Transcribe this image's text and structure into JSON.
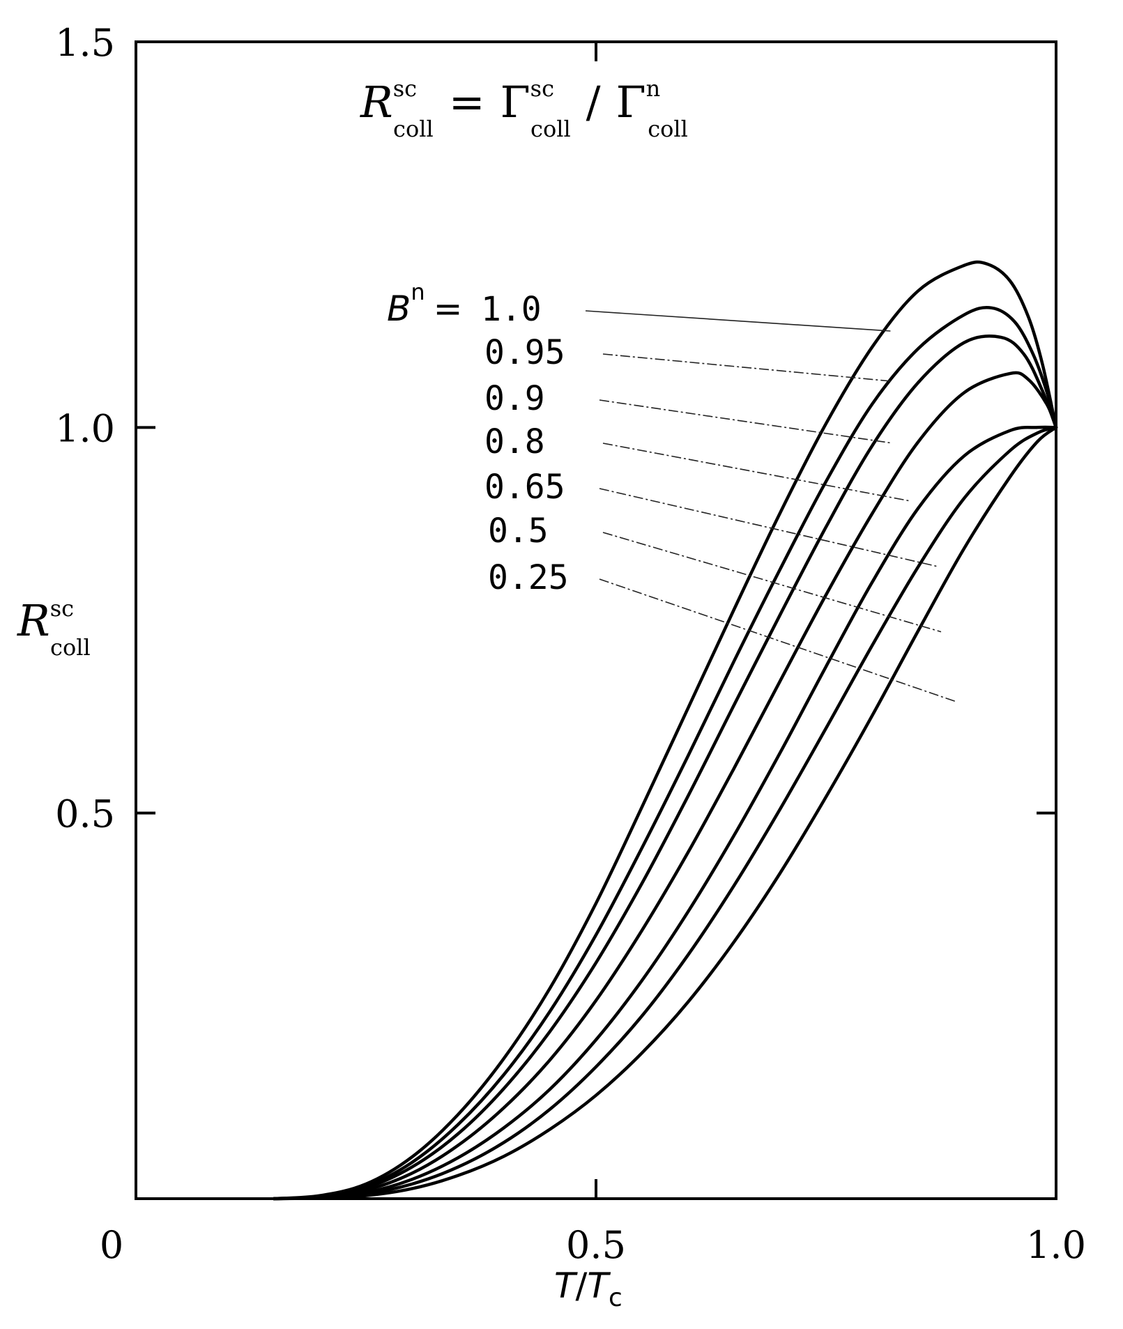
{
  "chart_data": {
    "type": "line",
    "title": {
      "lhs": "R",
      "lhs_sup": "sc",
      "lhs_sub": "coll",
      "eq": "=",
      "num": "Γ",
      "num_sup": "sc",
      "num_sub": "coll",
      "slash": "/",
      "den": "Γ",
      "den_sup": "n",
      "den_sub": "coll"
    },
    "ylabel": {
      "base": "R",
      "sup": "sc",
      "sub": "coll"
    },
    "xlabel": {
      "t": "T",
      "slash": "/",
      "tc": "T",
      "tc_sub": "c"
    },
    "xlim": [
      0,
      1.0
    ],
    "ylim": [
      0,
      1.5
    ],
    "x_ticks": [
      {
        "value": 0,
        "label": "0"
      },
      {
        "value": 0.5,
        "label": "0.5"
      },
      {
        "value": 1.0,
        "label": "1.0"
      }
    ],
    "y_ticks": [
      {
        "value": 0.5,
        "label": "0.5"
      },
      {
        "value": 1.0,
        "label": "1.0"
      },
      {
        "value": 1.5,
        "label": "1.5"
      }
    ],
    "grid": false,
    "legend_header": {
      "symbol": "B",
      "sup": "n",
      "eq": "="
    },
    "series": [
      {
        "name": "1.0",
        "label_pt": [
          0.82,
          1.125
        ],
        "points": [
          [
            0.15,
            0
          ],
          [
            0.2,
            0.004
          ],
          [
            0.25,
            0.019
          ],
          [
            0.3,
            0.054
          ],
          [
            0.35,
            0.109
          ],
          [
            0.4,
            0.182
          ],
          [
            0.45,
            0.273
          ],
          [
            0.5,
            0.383
          ],
          [
            0.55,
            0.508
          ],
          [
            0.6,
            0.636
          ],
          [
            0.65,
            0.764
          ],
          [
            0.7,
            0.889
          ],
          [
            0.75,
            1.005
          ],
          [
            0.8,
            1.104
          ],
          [
            0.85,
            1.177
          ],
          [
            0.9,
            1.21
          ],
          [
            0.925,
            1.212
          ],
          [
            0.95,
            1.19
          ],
          [
            0.97,
            1.143
          ],
          [
            0.985,
            1.083
          ],
          [
            1.0,
            1.0
          ]
        ]
      },
      {
        "name": "0.95",
        "label_pt": [
          0.82,
          1.06
        ],
        "points": [
          [
            0.15,
            0
          ],
          [
            0.2,
            0.003
          ],
          [
            0.25,
            0.016
          ],
          [
            0.3,
            0.047
          ],
          [
            0.35,
            0.096
          ],
          [
            0.4,
            0.161
          ],
          [
            0.45,
            0.243
          ],
          [
            0.5,
            0.342
          ],
          [
            0.55,
            0.455
          ],
          [
            0.6,
            0.574
          ],
          [
            0.65,
            0.697
          ],
          [
            0.7,
            0.816
          ],
          [
            0.75,
            0.93
          ],
          [
            0.8,
            1.03
          ],
          [
            0.85,
            1.102
          ],
          [
            0.9,
            1.146
          ],
          [
            0.93,
            1.155
          ],
          [
            0.955,
            1.137
          ],
          [
            0.975,
            1.095
          ],
          [
            0.99,
            1.046
          ],
          [
            1.0,
            1.0
          ]
        ]
      },
      {
        "name": "0.9",
        "label_pt": [
          0.82,
          0.98
        ],
        "points": [
          [
            0.15,
            0
          ],
          [
            0.2,
            0.003
          ],
          [
            0.25,
            0.014
          ],
          [
            0.3,
            0.041
          ],
          [
            0.35,
            0.084
          ],
          [
            0.4,
            0.143
          ],
          [
            0.45,
            0.217
          ],
          [
            0.5,
            0.306
          ],
          [
            0.55,
            0.409
          ],
          [
            0.6,
            0.522
          ],
          [
            0.65,
            0.64
          ],
          [
            0.7,
            0.757
          ],
          [
            0.75,
            0.871
          ],
          [
            0.8,
            0.976
          ],
          [
            0.85,
            1.058
          ],
          [
            0.9,
            1.11
          ],
          [
            0.94,
            1.117
          ],
          [
            0.965,
            1.095
          ],
          [
            0.985,
            1.048
          ],
          [
            1.0,
            1.0
          ]
        ]
      },
      {
        "name": "0.8",
        "label_pt": [
          0.84,
          0.905
        ],
        "points": [
          [
            0.15,
            0
          ],
          [
            0.2,
            0.002
          ],
          [
            0.25,
            0.011
          ],
          [
            0.3,
            0.033
          ],
          [
            0.35,
            0.069
          ],
          [
            0.4,
            0.118
          ],
          [
            0.45,
            0.18
          ],
          [
            0.5,
            0.257
          ],
          [
            0.55,
            0.348
          ],
          [
            0.6,
            0.449
          ],
          [
            0.65,
            0.558
          ],
          [
            0.7,
            0.671
          ],
          [
            0.75,
            0.783
          ],
          [
            0.8,
            0.888
          ],
          [
            0.85,
            0.981
          ],
          [
            0.9,
            1.045
          ],
          [
            0.95,
            1.07
          ],
          [
            0.97,
            1.062
          ],
          [
            0.99,
            1.03
          ],
          [
            1.0,
            1.0
          ]
        ]
      },
      {
        "name": "0.65",
        "label_pt": [
          0.87,
          0.82
        ],
        "points": [
          [
            0.15,
            0
          ],
          [
            0.2,
            0.002
          ],
          [
            0.25,
            0.008
          ],
          [
            0.3,
            0.025
          ],
          [
            0.35,
            0.053
          ],
          [
            0.4,
            0.092
          ],
          [
            0.45,
            0.142
          ],
          [
            0.5,
            0.206
          ],
          [
            0.55,
            0.283
          ],
          [
            0.6,
            0.372
          ],
          [
            0.65,
            0.471
          ],
          [
            0.7,
            0.578
          ],
          [
            0.75,
            0.69
          ],
          [
            0.8,
            0.799
          ],
          [
            0.85,
            0.895
          ],
          [
            0.9,
            0.963
          ],
          [
            0.95,
            0.996
          ],
          [
            0.98,
            1.0
          ],
          [
            1.0,
            1.0
          ]
        ]
      },
      {
        "name": "0.5",
        "label_pt": [
          0.875,
          0.735
        ],
        "points": [
          [
            0.15,
            0
          ],
          [
            0.2,
            0.001
          ],
          [
            0.25,
            0.006
          ],
          [
            0.3,
            0.019
          ],
          [
            0.35,
            0.041
          ],
          [
            0.4,
            0.073
          ],
          [
            0.45,
            0.116
          ],
          [
            0.5,
            0.171
          ],
          [
            0.55,
            0.237
          ],
          [
            0.6,
            0.316
          ],
          [
            0.65,
            0.406
          ],
          [
            0.7,
            0.505
          ],
          [
            0.75,
            0.61
          ],
          [
            0.8,
            0.717
          ],
          [
            0.85,
            0.819
          ],
          [
            0.9,
            0.908
          ],
          [
            0.95,
            0.97
          ],
          [
            0.98,
            0.993
          ],
          [
            1.0,
            1.0
          ]
        ]
      },
      {
        "name": "0.25",
        "label_pt": [
          0.89,
          0.645
        ],
        "points": [
          [
            0.15,
            0
          ],
          [
            0.2,
            0.001
          ],
          [
            0.25,
            0.004
          ],
          [
            0.3,
            0.013
          ],
          [
            0.35,
            0.03
          ],
          [
            0.4,
            0.055
          ],
          [
            0.45,
            0.09
          ],
          [
            0.5,
            0.134
          ],
          [
            0.55,
            0.189
          ],
          [
            0.6,
            0.255
          ],
          [
            0.65,
            0.333
          ],
          [
            0.7,
            0.422
          ],
          [
            0.75,
            0.521
          ],
          [
            0.8,
            0.626
          ],
          [
            0.85,
            0.736
          ],
          [
            0.9,
            0.843
          ],
          [
            0.95,
            0.936
          ],
          [
            0.98,
            0.982
          ],
          [
            1.0,
            1.0
          ]
        ]
      }
    ]
  }
}
